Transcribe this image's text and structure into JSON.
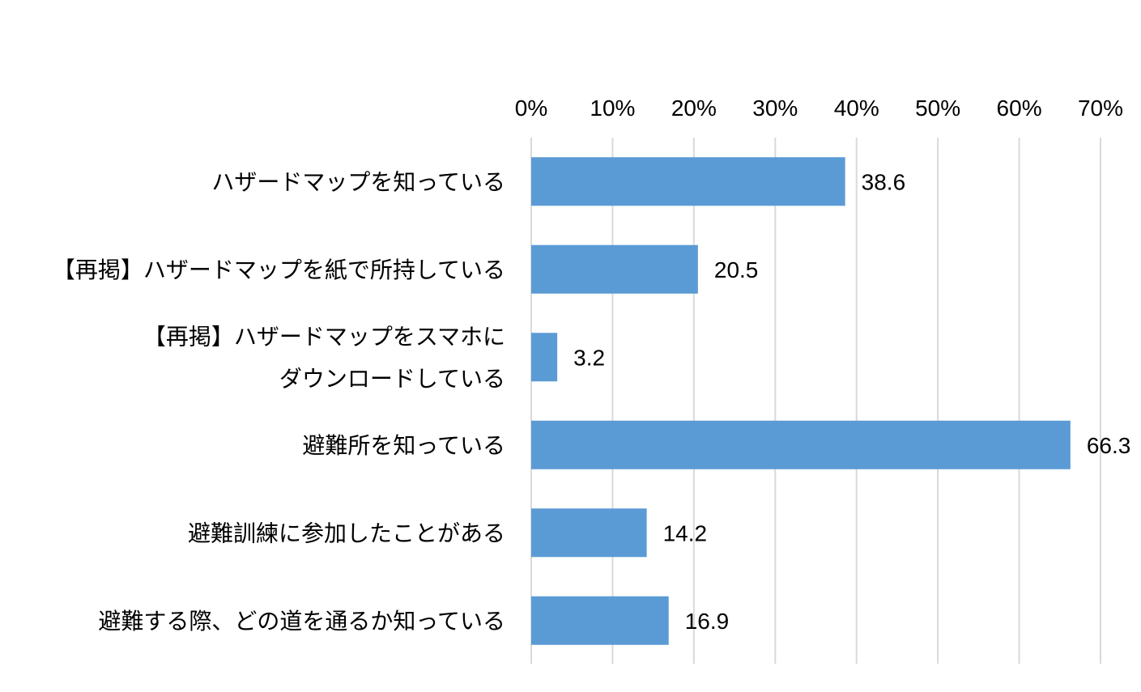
{
  "chart_data": {
    "type": "bar",
    "orientation": "horizontal",
    "categories": [
      [
        "ハザードマップを知っている"
      ],
      [
        "【再掲】ハザードマップを紙で所持している"
      ],
      [
        "【再掲】ハザードマップをスマホに",
        "ダウンロードしている"
      ],
      [
        "避難所を知っている"
      ],
      [
        "避難訓練に参加したことがある"
      ],
      [
        "避難する際、どの道を通るか知っている"
      ]
    ],
    "values": [
      38.6,
      20.5,
      3.2,
      66.3,
      14.2,
      16.9
    ],
    "value_labels": [
      "38.6",
      "20.5",
      "3.2",
      "66.3",
      "14.2",
      "16.9"
    ],
    "xlim": [
      0,
      70
    ],
    "x_ticks": [
      0,
      10,
      20,
      30,
      40,
      50,
      60,
      70
    ],
    "x_tick_labels": [
      "0%",
      "10%",
      "20%",
      "30%",
      "40%",
      "50%",
      "60%",
      "70%"
    ],
    "x_axis_position": "top",
    "grid": true,
    "legend": "none",
    "title": "",
    "xlabel": "",
    "ylabel": "",
    "bar_color": "#5b9bd5",
    "grid_color": "#d9d9d9"
  }
}
